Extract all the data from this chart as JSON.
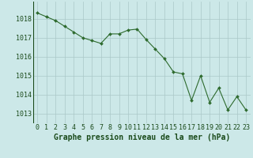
{
  "x": [
    0,
    1,
    2,
    3,
    4,
    5,
    6,
    7,
    8,
    9,
    10,
    11,
    12,
    13,
    14,
    15,
    16,
    17,
    18,
    19,
    20,
    21,
    22,
    23
  ],
  "y": [
    1018.3,
    1018.1,
    1017.9,
    1017.6,
    1017.3,
    1017.0,
    1016.85,
    1016.7,
    1017.2,
    1017.2,
    1017.4,
    1017.45,
    1016.9,
    1016.4,
    1015.9,
    1015.2,
    1015.1,
    1013.7,
    1015.0,
    1013.6,
    1014.35,
    1013.2,
    1013.9,
    1013.2
  ],
  "line_color": "#2d6a2d",
  "marker": "D",
  "marker_size": 2.0,
  "bg_color": "#cce8e8",
  "grid_color": "#aac8c8",
  "xlabel": "Graphe pression niveau de la mer (hPa)",
  "xlabel_fontsize": 7,
  "xlabel_color": "#1a4a1a",
  "ylabel_ticks": [
    1013,
    1014,
    1015,
    1016,
    1017,
    1018
  ],
  "xlim": [
    -0.5,
    23.5
  ],
  "ylim": [
    1012.5,
    1018.9
  ],
  "tick_fontsize": 6,
  "tick_color": "#1a4a1a",
  "xtick_labels": [
    "0",
    "1",
    "2",
    "3",
    "4",
    "5",
    "6",
    "7",
    "8",
    "9",
    "10",
    "11",
    "12",
    "13",
    "14",
    "15",
    "16",
    "17",
    "18",
    "19",
    "20",
    "21",
    "22",
    "23"
  ]
}
